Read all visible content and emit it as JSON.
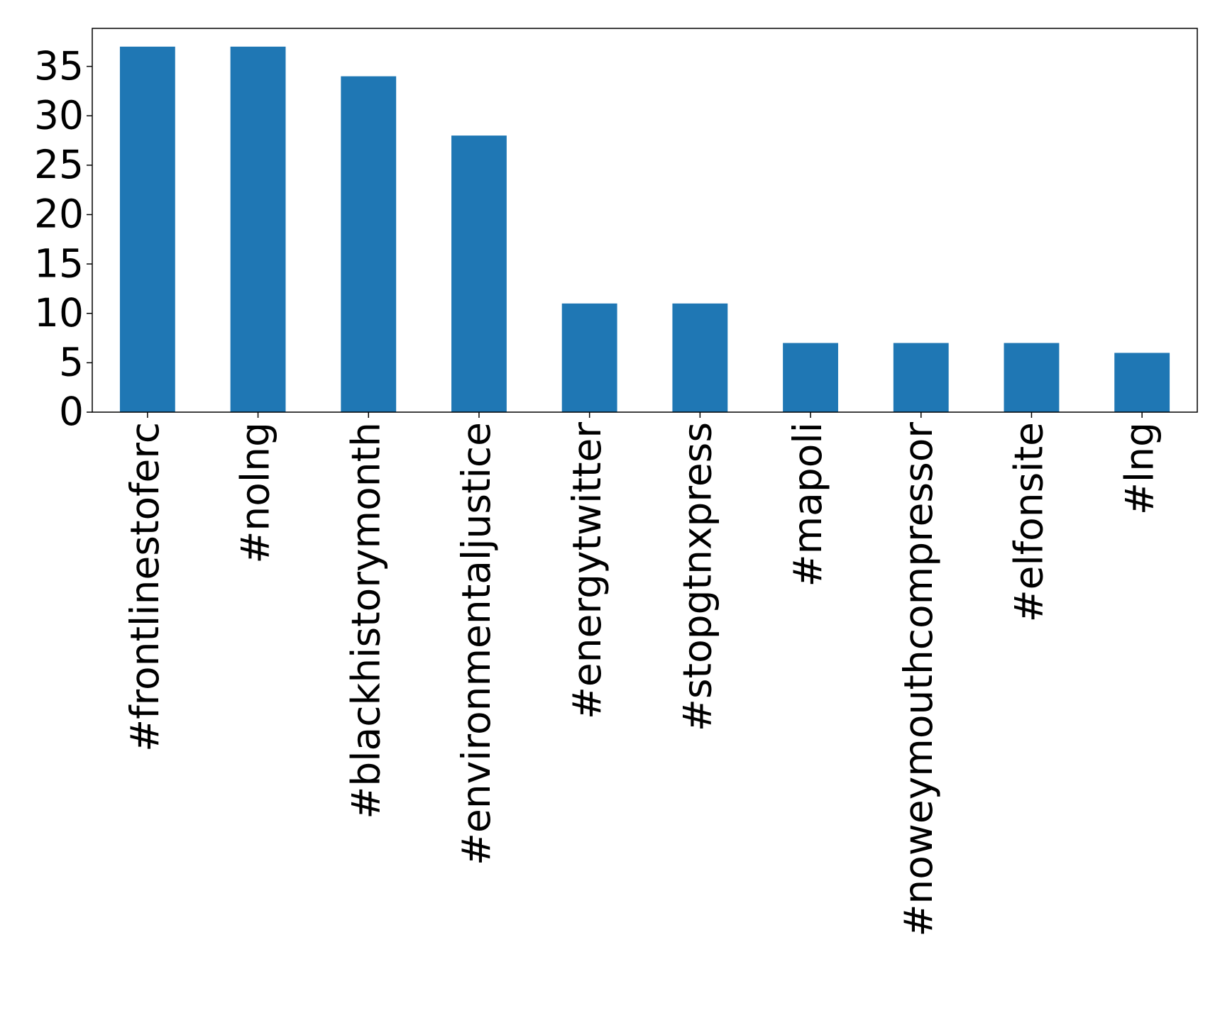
{
  "chart_data": {
    "type": "bar",
    "categories": [
      "#frontlinestoferc",
      "#nolng",
      "#blackhistorymonth",
      "#environmentaljustice",
      "#energytwitter",
      "#stopgtnxpress",
      "#mapoli",
      "#noweymouthcompressor",
      "#elfonsite",
      "#lng"
    ],
    "values": [
      37,
      37,
      34,
      28,
      11,
      11,
      7,
      7,
      7,
      6
    ],
    "color": "#1f77b4",
    "ylim": [
      0,
      38.85
    ],
    "yticks": [
      0,
      5,
      10,
      15,
      20,
      25,
      30,
      35
    ],
    "grid": false
  }
}
